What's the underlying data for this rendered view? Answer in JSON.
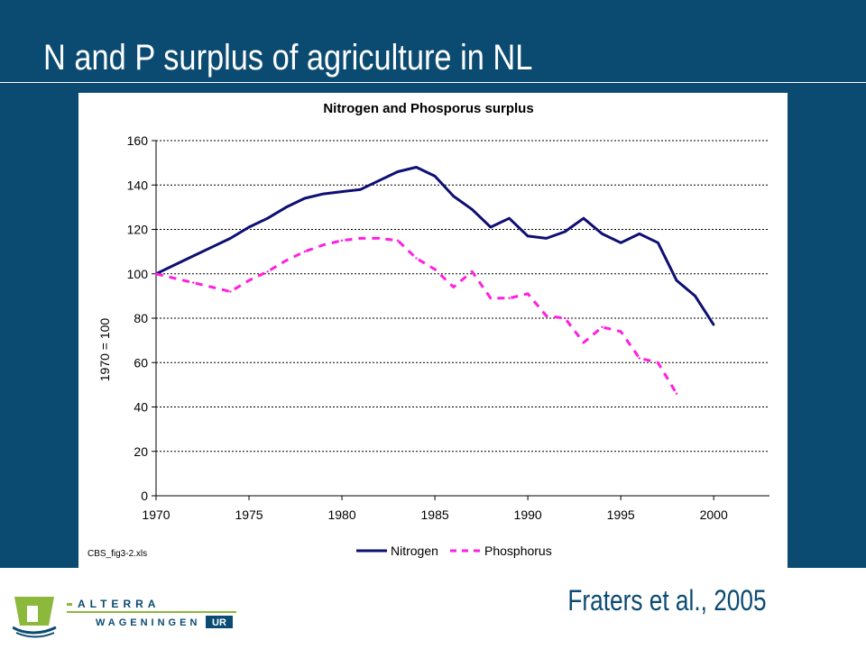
{
  "slide": {
    "title": "N and P surplus of agriculture in NL",
    "citation": "Fraters et al., 2005",
    "logo": {
      "line1": "ALTERRA",
      "line2_a": "WAGENINGEN",
      "line2_b": "UR",
      "colors": {
        "green": "#8cb83c",
        "blue": "#0b4b72"
      }
    }
  },
  "chart_data": {
    "type": "line",
    "title": "Nitrogen and Phosporus surplus",
    "ylabel": "1970 = 100",
    "xlabel": "",
    "source_note": "CBS_fig3-2.xls",
    "xlim": [
      1970,
      2003
    ],
    "ylim": [
      0,
      160
    ],
    "x_ticks": [
      "1970",
      "1975",
      "1980",
      "1985",
      "1990",
      "1995",
      "2000"
    ],
    "y_ticks": [
      "0",
      "20",
      "40",
      "60",
      "80",
      "100",
      "120",
      "140",
      "160"
    ],
    "grid": "horizontal dotted",
    "legend_position": "bottom",
    "series": [
      {
        "name": "Nitrogen",
        "color": "#0d0f73",
        "style": "solid",
        "points": [
          [
            1970,
            100
          ],
          [
            1971,
            104
          ],
          [
            1972,
            108
          ],
          [
            1973,
            112
          ],
          [
            1974,
            116
          ],
          [
            1975,
            121
          ],
          [
            1976,
            125
          ],
          [
            1977,
            130
          ],
          [
            1978,
            134
          ],
          [
            1979,
            136
          ],
          [
            1980,
            137
          ],
          [
            1981,
            138
          ],
          [
            1982,
            142
          ],
          [
            1983,
            146
          ],
          [
            1984,
            148
          ],
          [
            1985,
            144
          ],
          [
            1986,
            135
          ],
          [
            1987,
            129
          ],
          [
            1988,
            121
          ],
          [
            1989,
            125
          ],
          [
            1990,
            117
          ],
          [
            1991,
            116
          ],
          [
            1992,
            119
          ],
          [
            1993,
            125
          ],
          [
            1994,
            118
          ],
          [
            1995,
            114
          ],
          [
            1996,
            118
          ],
          [
            1997,
            114
          ],
          [
            1998,
            97
          ],
          [
            1999,
            90
          ],
          [
            2000,
            77
          ]
        ]
      },
      {
        "name": "Phosphorus",
        "color": "#ff1fe0",
        "style": "dashed",
        "points": [
          [
            1970,
            100
          ],
          [
            1971,
            98
          ],
          [
            1972,
            96
          ],
          [
            1973,
            94
          ],
          [
            1974,
            92
          ],
          [
            1975,
            97
          ],
          [
            1976,
            101
          ],
          [
            1977,
            106
          ],
          [
            1978,
            110
          ],
          [
            1979,
            113
          ],
          [
            1980,
            115
          ],
          [
            1981,
            116
          ],
          [
            1982,
            116
          ],
          [
            1983,
            115
          ],
          [
            1984,
            107
          ],
          [
            1985,
            102
          ],
          [
            1986,
            94
          ],
          [
            1987,
            101
          ],
          [
            1988,
            89
          ],
          [
            1989,
            89
          ],
          [
            1990,
            91
          ],
          [
            1991,
            81
          ],
          [
            1992,
            80
          ],
          [
            1993,
            69
          ],
          [
            1994,
            76
          ],
          [
            1995,
            74
          ],
          [
            1996,
            62
          ],
          [
            1997,
            60
          ],
          [
            1998,
            46
          ]
        ]
      }
    ]
  }
}
